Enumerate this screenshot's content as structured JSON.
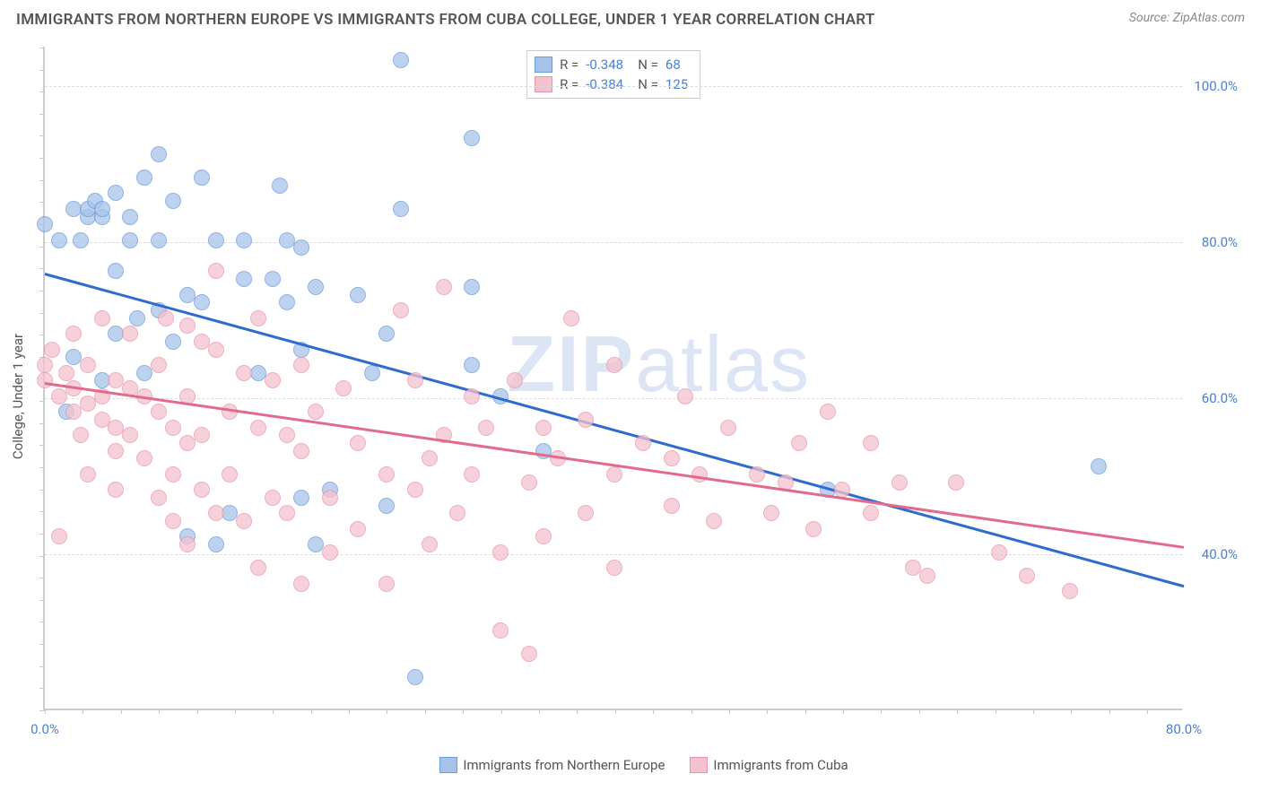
{
  "title": "IMMIGRANTS FROM NORTHERN EUROPE VS IMMIGRANTS FROM CUBA COLLEGE, UNDER 1 YEAR CORRELATION CHART",
  "source": "Source: ZipAtlas.com",
  "ylabel": "College, Under 1 year",
  "watermark_bold": "ZIP",
  "watermark_light": "atlas",
  "chart": {
    "type": "scatter",
    "background_color": "#ffffff",
    "grid_color": "#dddddd",
    "axis_color": "#cccccc",
    "tick_label_color": "#4a80d6",
    "xlim": [
      0,
      80
    ],
    "ylim": [
      20,
      105
    ],
    "xticks": [
      0,
      20,
      40,
      60,
      80
    ],
    "xtick_labels": [
      "0.0%",
      "",
      "",
      "",
      "80.0%"
    ],
    "yticks": [
      40,
      60,
      80,
      100
    ],
    "ytick_labels": [
      "40.0%",
      "60.0%",
      "80.0%",
      "100.0%"
    ],
    "xtick_minor_step": 2.67,
    "ytick_minor_step": 2.83,
    "point_radius": 9,
    "series": [
      {
        "name": "Immigrants from Northern Europe",
        "fill": "#a6c4ea",
        "stroke": "#6b9bdc",
        "line_color": "#2e6bd0",
        "R": "-0.348",
        "N": "68",
        "trend": {
          "x1": 0,
          "y1": 76,
          "x2": 80,
          "y2": 36
        },
        "points": [
          [
            0,
            82
          ],
          [
            1,
            80
          ],
          [
            1.5,
            58
          ],
          [
            2,
            84
          ],
          [
            2,
            65
          ],
          [
            2.5,
            80
          ],
          [
            3,
            83
          ],
          [
            3,
            84
          ],
          [
            3.5,
            85
          ],
          [
            4,
            83
          ],
          [
            4,
            84
          ],
          [
            4,
            62
          ],
          [
            5,
            86
          ],
          [
            5,
            76
          ],
          [
            5,
            68
          ],
          [
            6,
            83
          ],
          [
            6,
            80
          ],
          [
            6.5,
            70
          ],
          [
            7,
            88
          ],
          [
            7,
            63
          ],
          [
            8,
            91
          ],
          [
            8,
            80
          ],
          [
            8,
            71
          ],
          [
            9,
            85
          ],
          [
            9,
            67
          ],
          [
            10,
            73
          ],
          [
            10,
            42
          ],
          [
            11,
            88
          ],
          [
            11,
            72
          ],
          [
            12,
            80
          ],
          [
            12,
            41
          ],
          [
            13,
            45
          ],
          [
            14,
            80
          ],
          [
            14,
            75
          ],
          [
            15,
            63
          ],
          [
            16,
            75
          ],
          [
            16.5,
            87
          ],
          [
            17,
            80
          ],
          [
            17,
            72
          ],
          [
            18,
            79
          ],
          [
            18,
            66
          ],
          [
            18,
            47
          ],
          [
            19,
            74
          ],
          [
            19,
            41
          ],
          [
            20,
            48
          ],
          [
            22,
            73
          ],
          [
            23,
            63
          ],
          [
            24,
            68
          ],
          [
            24,
            46
          ],
          [
            25,
            103
          ],
          [
            25,
            84
          ],
          [
            26,
            24
          ],
          [
            30,
            93
          ],
          [
            30,
            74
          ],
          [
            30,
            64
          ],
          [
            32,
            60
          ],
          [
            35,
            53
          ],
          [
            55,
            48
          ],
          [
            74,
            51
          ]
        ]
      },
      {
        "name": "Immigrants from Cuba",
        "fill": "#f4c2ce",
        "stroke": "#e995ab",
        "line_color": "#e26a8c",
        "R": "-0.384",
        "N": "125",
        "trend": {
          "x1": 0,
          "y1": 62,
          "x2": 80,
          "y2": 41
        },
        "points": [
          [
            0,
            64
          ],
          [
            0,
            62
          ],
          [
            0.5,
            66
          ],
          [
            1,
            60
          ],
          [
            1,
            42
          ],
          [
            1.5,
            63
          ],
          [
            2,
            61
          ],
          [
            2,
            58
          ],
          [
            2,
            68
          ],
          [
            2.5,
            55
          ],
          [
            3,
            64
          ],
          [
            3,
            59
          ],
          [
            3,
            50
          ],
          [
            4,
            60
          ],
          [
            4,
            57
          ],
          [
            4,
            70
          ],
          [
            5,
            62
          ],
          [
            5,
            56
          ],
          [
            5,
            53
          ],
          [
            5,
            48
          ],
          [
            6,
            68
          ],
          [
            6,
            61
          ],
          [
            6,
            55
          ],
          [
            7,
            60
          ],
          [
            7,
            52
          ],
          [
            8,
            64
          ],
          [
            8,
            58
          ],
          [
            8,
            47
          ],
          [
            8.5,
            70
          ],
          [
            9,
            56
          ],
          [
            9,
            50
          ],
          [
            9,
            44
          ],
          [
            10,
            69
          ],
          [
            10,
            60
          ],
          [
            10,
            54
          ],
          [
            10,
            41
          ],
          [
            11,
            67
          ],
          [
            11,
            55
          ],
          [
            11,
            48
          ],
          [
            12,
            76
          ],
          [
            12,
            66
          ],
          [
            12,
            45
          ],
          [
            13,
            58
          ],
          [
            13,
            50
          ],
          [
            14,
            63
          ],
          [
            14,
            44
          ],
          [
            15,
            70
          ],
          [
            15,
            56
          ],
          [
            15,
            38
          ],
          [
            16,
            62
          ],
          [
            16,
            47
          ],
          [
            17,
            55
          ],
          [
            17,
            45
          ],
          [
            18,
            64
          ],
          [
            18,
            53
          ],
          [
            18,
            36
          ],
          [
            19,
            58
          ],
          [
            20,
            47
          ],
          [
            20,
            40
          ],
          [
            21,
            61
          ],
          [
            22,
            54
          ],
          [
            22,
            43
          ],
          [
            24,
            50
          ],
          [
            24,
            36
          ],
          [
            25,
            71
          ],
          [
            26,
            62
          ],
          [
            26,
            48
          ],
          [
            27,
            52
          ],
          [
            27,
            41
          ],
          [
            28,
            74
          ],
          [
            28,
            55
          ],
          [
            29,
            45
          ],
          [
            30,
            60
          ],
          [
            30,
            50
          ],
          [
            31,
            56
          ],
          [
            32,
            40
          ],
          [
            32,
            30
          ],
          [
            33,
            62
          ],
          [
            34,
            49
          ],
          [
            34,
            27
          ],
          [
            35,
            56
          ],
          [
            35,
            42
          ],
          [
            36,
            52
          ],
          [
            37,
            70
          ],
          [
            38,
            57
          ],
          [
            38,
            45
          ],
          [
            40,
            64
          ],
          [
            40,
            50
          ],
          [
            40,
            38
          ],
          [
            42,
            54
          ],
          [
            44,
            46
          ],
          [
            44,
            52
          ],
          [
            45,
            60
          ],
          [
            46,
            50
          ],
          [
            47,
            44
          ],
          [
            48,
            56
          ],
          [
            50,
            50
          ],
          [
            51,
            45
          ],
          [
            52,
            49
          ],
          [
            53,
            54
          ],
          [
            54,
            43
          ],
          [
            55,
            58
          ],
          [
            56,
            48
          ],
          [
            58,
            45
          ],
          [
            58,
            54
          ],
          [
            60,
            49
          ],
          [
            61,
            38
          ],
          [
            62,
            37
          ],
          [
            64,
            49
          ],
          [
            67,
            40
          ],
          [
            69,
            37
          ],
          [
            72,
            35
          ]
        ]
      }
    ]
  },
  "legend_bottom": [
    {
      "label": "Immigrants from Northern Europe",
      "fill": "#a6c4ea",
      "stroke": "#6b9bdc"
    },
    {
      "label": "Immigrants from Cuba",
      "fill": "#f4c2ce",
      "stroke": "#e995ab"
    }
  ]
}
